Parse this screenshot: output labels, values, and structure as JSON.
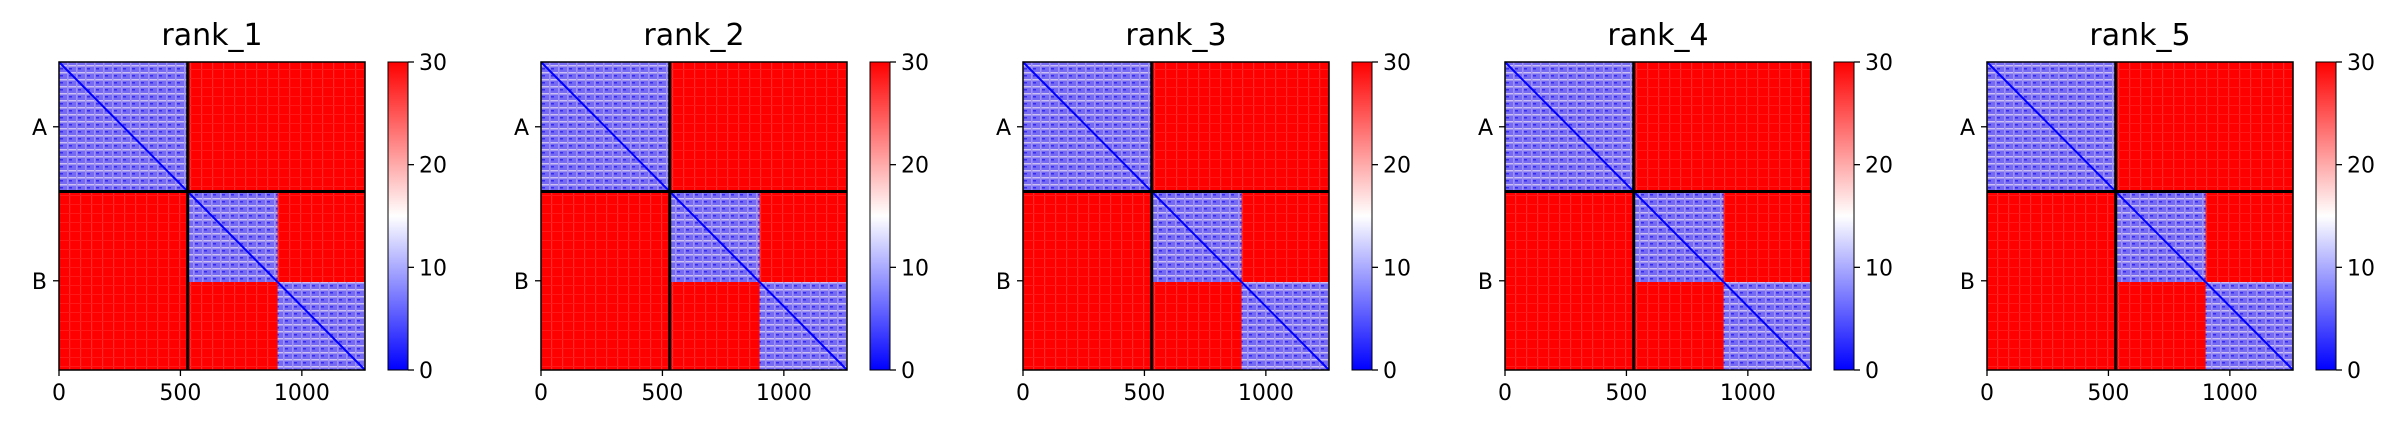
{
  "chart_data": [
    {
      "type": "heatmap",
      "title": "rank_1",
      "chain_labels": [
        "A",
        "B"
      ],
      "chain_boundaries": [
        0,
        530,
        1260
      ],
      "x_ticks": [
        0,
        500,
        1000
      ],
      "xlim": [
        0,
        1260
      ],
      "colorbar": {
        "min": 0,
        "max": 30,
        "ticks": [
          0,
          10,
          20,
          30
        ],
        "colormap": "bwr"
      },
      "diagonal_blocks": [
        [
          0,
          530
        ],
        [
          530,
          900
        ],
        [
          900,
          1260
        ]
      ],
      "intra_block_value": 6,
      "inter_chain_value": 30
    },
    {
      "type": "heatmap",
      "title": "rank_2",
      "chain_labels": [
        "A",
        "B"
      ],
      "chain_boundaries": [
        0,
        530,
        1260
      ],
      "x_ticks": [
        0,
        500,
        1000
      ],
      "xlim": [
        0,
        1260
      ],
      "colorbar": {
        "min": 0,
        "max": 30,
        "ticks": [
          0,
          10,
          20,
          30
        ],
        "colormap": "bwr"
      },
      "diagonal_blocks": [
        [
          0,
          530
        ],
        [
          530,
          900
        ],
        [
          900,
          1260
        ]
      ],
      "intra_block_value": 6,
      "inter_chain_value": 30
    },
    {
      "type": "heatmap",
      "title": "rank_3",
      "chain_labels": [
        "A",
        "B"
      ],
      "chain_boundaries": [
        0,
        530,
        1260
      ],
      "x_ticks": [
        0,
        500,
        1000
      ],
      "xlim": [
        0,
        1260
      ],
      "colorbar": {
        "min": 0,
        "max": 30,
        "ticks": [
          0,
          10,
          20,
          30
        ],
        "colormap": "bwr"
      },
      "diagonal_blocks": [
        [
          0,
          530
        ],
        [
          530,
          900
        ],
        [
          900,
          1260
        ]
      ],
      "intra_block_value": 6,
      "inter_chain_value": 30
    },
    {
      "type": "heatmap",
      "title": "rank_4",
      "chain_labels": [
        "A",
        "B"
      ],
      "chain_boundaries": [
        0,
        530,
        1260
      ],
      "x_ticks": [
        0,
        500,
        1000
      ],
      "xlim": [
        0,
        1260
      ],
      "colorbar": {
        "min": 0,
        "max": 30,
        "ticks": [
          0,
          10,
          20,
          30
        ],
        "colormap": "bwr"
      },
      "diagonal_blocks": [
        [
          0,
          530
        ],
        [
          530,
          900
        ],
        [
          900,
          1260
        ]
      ],
      "intra_block_value": 6,
      "inter_chain_value": 30
    },
    {
      "type": "heatmap",
      "title": "rank_5",
      "chain_labels": [
        "A",
        "B"
      ],
      "chain_boundaries": [
        0,
        530,
        1260
      ],
      "x_ticks": [
        0,
        500,
        1000
      ],
      "xlim": [
        0,
        1260
      ],
      "colorbar": {
        "min": 0,
        "max": 30,
        "ticks": [
          0,
          10,
          20,
          30
        ],
        "colormap": "bwr"
      },
      "diagonal_blocks": [
        [
          0,
          530
        ],
        [
          530,
          900
        ],
        [
          900,
          1260
        ]
      ],
      "intra_block_value": 6,
      "inter_chain_value": 30
    }
  ]
}
